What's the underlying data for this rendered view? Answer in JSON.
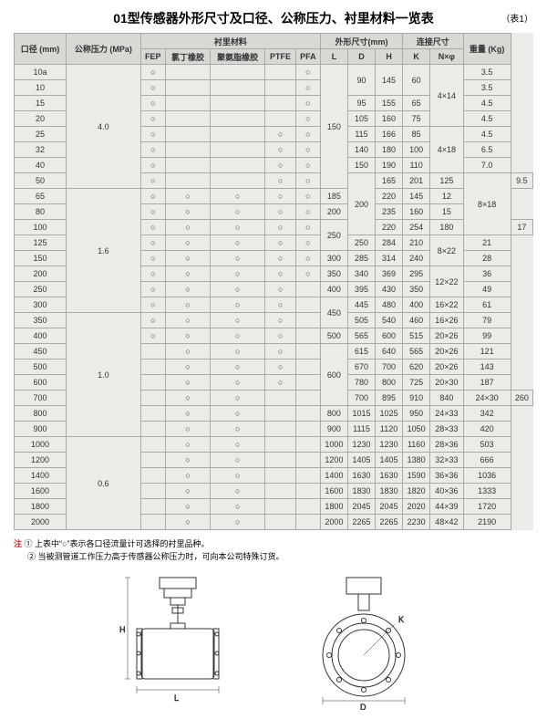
{
  "title": "01型传感器外形尺寸及口径、公称压力、衬里材料一览表",
  "title_note": "（表1）",
  "headers": {
    "diameter": "口径\n(mm)",
    "pressure": "公称压力\n(MPa)",
    "lining_group": "衬里材料",
    "dimensions_group": "外形尺寸(mm)",
    "connection_group": "连接尺寸",
    "weight": "重量\n(Kg)",
    "lining": [
      "FEP",
      "氯丁橡胶",
      "聚氨脂橡胶",
      "PTFE",
      "PFA"
    ],
    "dims": [
      "L",
      "D",
      "H"
    ],
    "conn": [
      "K",
      "N×φ"
    ]
  },
  "circle": "○",
  "rows": [
    {
      "d": "10a",
      "p": "4.0",
      "p_span": 8,
      "l": [
        "○",
        "",
        "",
        "",
        "○"
      ],
      "L": "150",
      "L_span": 8,
      "D": "90",
      "D_span": 2,
      "H": "145",
      "H_span": 2,
      "K": "60",
      "K_span": 2,
      "N": "4×14",
      "N_span": 4,
      "w": "3.5"
    },
    {
      "d": "10",
      "l": [
        "○",
        "",
        "",
        "",
        "○"
      ],
      "w": "3.5"
    },
    {
      "d": "15",
      "l": [
        "○",
        "",
        "",
        "",
        "○"
      ],
      "D": "95",
      "H": "155",
      "K": "65",
      "w": "4.5"
    },
    {
      "d": "20",
      "l": [
        "○",
        "",
        "",
        "",
        "○"
      ],
      "D": "105",
      "H": "160",
      "K": "75",
      "w": "4.5"
    },
    {
      "d": "25",
      "l": [
        "○",
        "",
        "",
        "○",
        "○"
      ],
      "D": "115",
      "H": "166",
      "K": "85",
      "N": "4×18",
      "N_span": 3,
      "w": "4.5"
    },
    {
      "d": "32",
      "l": [
        "○",
        "",
        "",
        "○",
        "○"
      ],
      "D": "140",
      "H": "180",
      "K": "100",
      "w": "6.5"
    },
    {
      "d": "40",
      "l": [
        "○",
        "",
        "",
        "○",
        "○"
      ],
      "D": "150",
      "H": "190",
      "K": "110",
      "w": "7.0"
    },
    {
      "d": "50",
      "l": [
        "○",
        "",
        "",
        "○",
        "○"
      ],
      "L": "200",
      "L_span": 4,
      "D": "165",
      "H": "201",
      "K": "125",
      "N": "8×18",
      "N_span": 4,
      "w": "9.5"
    },
    {
      "d": "65",
      "p": "1.6",
      "p_span": 8,
      "l": [
        "○",
        "○",
        "○",
        "○",
        "○"
      ],
      "D": "185",
      "H": "220",
      "K": "145",
      "w": "12"
    },
    {
      "d": "80",
      "l": [
        "○",
        "○",
        "○",
        "○",
        "○"
      ],
      "D": "200",
      "H": "235",
      "K": "160",
      "w": "15"
    },
    {
      "d": "100",
      "l": [
        "○",
        "○",
        "○",
        "○",
        "○"
      ],
      "L": "250",
      "L_span": 2,
      "D": "220",
      "H": "254",
      "K": "180",
      "w": "17"
    },
    {
      "d": "125",
      "l": [
        "○",
        "○",
        "○",
        "○",
        "○"
      ],
      "D": "250",
      "H": "284",
      "K": "210",
      "N": "8×22",
      "N_span": 2,
      "w": "21"
    },
    {
      "d": "150",
      "l": [
        "○",
        "○",
        "○",
        "○",
        "○"
      ],
      "L": "300",
      "D": "285",
      "H": "314",
      "K": "240",
      "w": "28"
    },
    {
      "d": "200",
      "l": [
        "○",
        "○",
        "○",
        "○",
        "○"
      ],
      "L": "350",
      "D": "340",
      "H": "369",
      "K": "295",
      "N": "12×22",
      "N_span": 2,
      "w": "36"
    },
    {
      "d": "250",
      "l": [
        "○",
        "○",
        "○",
        "○",
        ""
      ],
      "L": "400",
      "D": "395",
      "H": "430",
      "K": "350",
      "w": "49"
    },
    {
      "d": "300",
      "l": [
        "○",
        "○",
        "○",
        "○",
        ""
      ],
      "L": "450",
      "L_span": 2,
      "D": "445",
      "H": "480",
      "K": "400",
      "N": "16×22",
      "w": "61"
    },
    {
      "d": "350",
      "p": "1.0",
      "p_span": 8,
      "l": [
        "○",
        "○",
        "○",
        "○",
        ""
      ],
      "D": "505",
      "H": "540",
      "K": "460",
      "N": "16×26",
      "w": "79"
    },
    {
      "d": "400",
      "l": [
        "○",
        "○",
        "○",
        "○",
        ""
      ],
      "L": "500",
      "D": "565",
      "H": "600",
      "K": "515",
      "N": "20×26",
      "w": "99"
    },
    {
      "d": "450",
      "l": [
        "",
        "○",
        "○",
        "○",
        ""
      ],
      "L": "600",
      "L_span": 4,
      "D": "615",
      "H": "640",
      "K": "565",
      "N": "20×26",
      "w": "121"
    },
    {
      "d": "500",
      "l": [
        "",
        "○",
        "○",
        "○",
        ""
      ],
      "D": "670",
      "H": "700",
      "K": "620",
      "N": "20×26",
      "w": "143"
    },
    {
      "d": "600",
      "l": [
        "",
        "○",
        "○",
        "○",
        ""
      ],
      "D": "780",
      "H": "800",
      "K": "725",
      "N": "20×30",
      "w": "187"
    },
    {
      "d": "700",
      "l": [
        "",
        "○",
        "○",
        "",
        ""
      ],
      "L": "700",
      "D": "895",
      "H": "910",
      "K": "840",
      "N": "24×30",
      "w": "260"
    },
    {
      "d": "800",
      "l": [
        "",
        "○",
        "○",
        "",
        ""
      ],
      "L": "800",
      "D": "1015",
      "H": "1025",
      "K": "950",
      "N": "24×33",
      "w": "342"
    },
    {
      "d": "900",
      "l": [
        "",
        "○",
        "○",
        "",
        ""
      ],
      "L": "900",
      "D": "1115",
      "H": "1120",
      "K": "1050",
      "N": "28×33",
      "w": "420"
    },
    {
      "d": "1000",
      "p": "0.6",
      "p_span": 6,
      "l": [
        "",
        "○",
        "○",
        "",
        ""
      ],
      "L": "1000",
      "D": "1230",
      "H": "1230",
      "K": "1160",
      "N": "28×36",
      "w": "503"
    },
    {
      "d": "1200",
      "l": [
        "",
        "○",
        "○",
        "",
        ""
      ],
      "L": "1200",
      "D": "1405",
      "H": "1405",
      "K": "1380",
      "N": "32×33",
      "w": "666"
    },
    {
      "d": "1400",
      "l": [
        "",
        "○",
        "○",
        "",
        ""
      ],
      "L": "1400",
      "D": "1630",
      "H": "1630",
      "K": "1590",
      "N": "36×36",
      "w": "1036"
    },
    {
      "d": "1600",
      "l": [
        "",
        "○",
        "○",
        "",
        ""
      ],
      "L": "1600",
      "D": "1830",
      "H": "1830",
      "K": "1820",
      "N": "40×36",
      "w": "1333"
    },
    {
      "d": "1800",
      "l": [
        "",
        "○",
        "○",
        "",
        ""
      ],
      "L": "1800",
      "D": "2045",
      "H": "2045",
      "K": "2020",
      "N": "44×39",
      "w": "1720"
    },
    {
      "d": "2000",
      "l": [
        "",
        "○",
        "○",
        "",
        ""
      ],
      "L": "2000",
      "D": "2265",
      "H": "2265",
      "K": "2230",
      "N": "48×42",
      "w": "2190"
    }
  ],
  "notes": {
    "prefix": "注  ",
    "n1": "① 上表中“○”表示各口径流量计可选择的衬里品种。",
    "n2": "② 当被测管道工作压力高于传感器公称压力时，可向本公司特殊订货。"
  }
}
